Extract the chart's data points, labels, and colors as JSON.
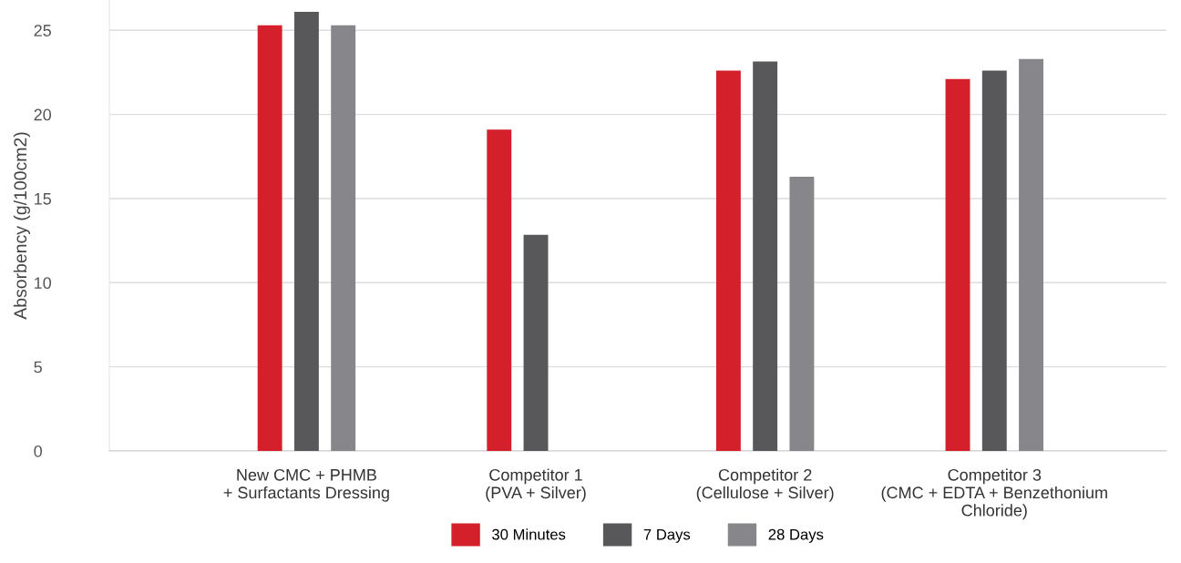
{
  "chart_data": {
    "type": "bar",
    "ylabel": "Absorbency (g/100cm2)",
    "categories": [
      "New CMC + PHMB\n+ Surfactants Dressing",
      "Competitor 1\n(PVA + Silver)",
      "Competitor 2\n(Cellulose + Silver)",
      "Competitor 3\n(CMC + EDTA + Benzethonium\nChloride)"
    ],
    "series": [
      {
        "name": "30 Minutes",
        "color": "#d4202a",
        "values": [
          25.3,
          19.1,
          22.6,
          22.1
        ]
      },
      {
        "name": "7 Days",
        "color": "#58585a",
        "values": [
          26.1,
          12.85,
          23.15,
          22.6
        ]
      },
      {
        "name": "28 Days",
        "color": "#87878b",
        "values": [
          25.3,
          null,
          16.3,
          23.3
        ]
      }
    ],
    "ylim": [
      0,
      26.8
    ],
    "yticks": [
      0,
      5,
      10,
      15,
      20,
      25
    ],
    "grid": "y",
    "legend": "bottom"
  }
}
